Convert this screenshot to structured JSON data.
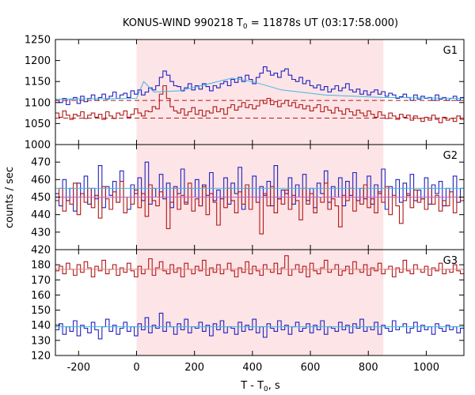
{
  "chart_data": {
    "type": "line",
    "title_main": "KONUS-WIND 990218 T",
    "title_sub": "0",
    "title_rest": " = 11878s UT (03:17:58.000)",
    "xlabel_main": "T - T",
    "xlabel_sub": "0",
    "xlabel_rest": ", s",
    "ylabel": "counts / sec",
    "xlim": [
      -280,
      1130
    ],
    "xticks": [
      -200,
      0,
      200,
      400,
      600,
      800,
      1000
    ],
    "xticklabels": [
      "-200",
      "0",
      "200",
      "400",
      "600",
      "800",
      "1000"
    ],
    "shaded_interval": [
      0,
      852
    ],
    "panels": [
      {
        "name": "G1",
        "ylim": [
          1000,
          1250
        ],
        "yticks": [
          1000,
          1050,
          1100,
          1150,
          1200,
          1250
        ],
        "yticklabels": [
          "1000",
          "1050",
          "1100",
          "1150",
          "1200",
          "1250"
        ],
        "series": [
          {
            "color": "#2020c0",
            "values": [
              1105,
              1100,
              1110,
              1095,
              1108,
              1112,
              1098,
              1115,
              1102,
              1110,
              1118,
              1105,
              1112,
              1120,
              1108,
              1115,
              1125,
              1110,
              1118,
              1122,
              1112,
              1128,
              1120,
              1130,
              1118,
              1125,
              1135,
              1130,
              1140,
              1160,
              1175,
              1165,
              1150,
              1140,
              1138,
              1128,
              1135,
              1145,
              1130,
              1140,
              1132,
              1145,
              1138,
              1128,
              1140,
              1135,
              1145,
              1150,
              1140,
              1155,
              1148,
              1160,
              1150,
              1165,
              1155,
              1145,
              1160,
              1170,
              1185,
              1175,
              1165,
              1170,
              1160,
              1175,
              1180,
              1165,
              1155,
              1150,
              1160,
              1145,
              1152,
              1140,
              1135,
              1142,
              1130,
              1138,
              1125,
              1132,
              1140,
              1128,
              1135,
              1145,
              1130,
              1125,
              1132,
              1120,
              1128,
              1118,
              1125,
              1130,
              1120,
              1126,
              1115,
              1122,
              1118,
              1110,
              1114,
              1120,
              1112,
              1105,
              1118,
              1108,
              1115,
              1110,
              1112,
              1105,
              1118,
              1108,
              1112,
              1105,
              1110,
              1115,
              1105,
              1112
            ]
          },
          {
            "color": "#b01818",
            "values": [
              1075,
              1065,
              1080,
              1070,
              1060,
              1072,
              1068,
              1078,
              1062,
              1070,
              1075,
              1065,
              1072,
              1060,
              1078,
              1068,
              1062,
              1075,
              1070,
              1080,
              1065,
              1072,
              1085,
              1075,
              1068,
              1080,
              1078,
              1090,
              1085,
              1120,
              1140,
              1110,
              1090,
              1080,
              1075,
              1085,
              1070,
              1078,
              1088,
              1072,
              1082,
              1068,
              1080,
              1075,
              1090,
              1078,
              1085,
              1072,
              1088,
              1095,
              1082,
              1090,
              1100,
              1088,
              1095,
              1085,
              1092,
              1105,
              1098,
              1110,
              1095,
              1102,
              1090,
              1098,
              1105,
              1092,
              1100,
              1088,
              1095,
              1085,
              1092,
              1080,
              1088,
              1095,
              1078,
              1090,
              1082,
              1075,
              1088,
              1080,
              1072,
              1085,
              1078,
              1070,
              1082,
              1075,
              1068,
              1080,
              1072,
              1065,
              1078,
              1070,
              1062,
              1075,
              1068,
              1060,
              1072,
              1065,
              1070,
              1058,
              1068,
              1062,
              1055,
              1065,
              1058,
              1070,
              1060,
              1052,
              1065,
              1058,
              1062,
              1055,
              1068,
              1060
            ]
          }
        ],
        "fits": [
          {
            "color": "#40b8e0",
            "style": "solid",
            "points": [
              [
                -280,
                1108
              ],
              [
                0,
                1110
              ],
              [
                25,
                1150
              ],
              [
                60,
                1125
              ],
              [
                150,
                1128
              ],
              [
                330,
                1158
              ],
              [
                400,
                1150
              ],
              [
                500,
                1130
              ],
              [
                650,
                1118
              ],
              [
                850,
                1112
              ],
              [
                1130,
                1110
              ]
            ]
          },
          {
            "color": "#b01818",
            "style": "dashed",
            "points": [
              [
                -280,
                1063
              ],
              [
                1130,
                1063
              ]
            ]
          },
          {
            "color": "#b01818",
            "style": "dashed",
            "points": [
              [
                -280,
                1105
              ],
              [
                1130,
                1105
              ]
            ]
          }
        ]
      },
      {
        "name": "G2",
        "ylim": [
          420,
          480
        ],
        "yticks": [
          420,
          430,
          440,
          450,
          460,
          470
        ],
        "yticklabels": [
          "420",
          "430",
          "440",
          "450",
          "460",
          "470"
        ],
        "series": [
          {
            "color": "#2020c0",
            "values": [
              452,
              445,
              460,
              448,
              455,
              442,
              458,
              450,
              462,
              446,
              455,
              449,
              468,
              444,
              456,
              451,
              459,
              447,
              465,
              450,
              443,
              457,
              452,
              461,
              448,
              470,
              446,
              455,
              450,
              463,
              449,
              458,
              444,
              456,
              452,
              466,
              447,
              455,
              450,
              460,
              445,
              457,
              451,
              464,
              448,
              454,
              449,
              461,
              446,
              458,
              452,
              467,
              443,
              455,
              450,
              462,
              447,
              456,
              451,
              459,
              445,
              468,
              449,
              454,
              452,
              461,
              446,
              457,
              450,
              463,
              448,
              455,
              444,
              458,
              452,
              465,
              447,
              456,
              450,
              461,
              445,
              459,
              451,
              464,
              448,
              455,
              449,
              462,
              446,
              457,
              452,
              466,
              443,
              456,
              450,
              460,
              447,
              458,
              451,
              463,
              448,
              454,
              449,
              461,
              446,
              457,
              452,
              459,
              445,
              455,
              450,
              462,
              447,
              455
            ]
          },
          {
            "color": "#b01818",
            "values": [
              448,
              455,
              442,
              450,
              446,
              458,
              440,
              452,
              447,
              455,
              444,
              451,
              438,
              456,
              449,
              443,
              453,
              447,
              459,
              441,
              450,
              446,
              454,
              444,
              452,
              439,
              457,
              448,
              445,
              453,
              450,
              432,
              447,
              455,
              443,
              451,
              446,
              458,
              442,
              449,
              445,
              456,
              440,
              452,
              447,
              434,
              450,
              444,
              455,
              448,
              441,
              453,
              446,
              457,
              443,
              450,
              447,
              429,
              452,
              445,
              456,
              441,
              449,
              446,
              454,
              443,
              451,
              448,
              437,
              455,
              446,
              452,
              441,
              450,
              447,
              458,
              443,
              449,
              445,
              433,
              451,
              448,
              455,
              442,
              450,
              446,
              457,
              444,
              449,
              441,
              453,
              447,
              456,
              440,
              451,
              445,
              435,
              448,
              452,
              444,
              454,
              447,
              449,
              443,
              455,
              446,
              451,
              442,
              448,
              445,
              453,
              441,
              450,
              448
            ]
          }
        ],
        "fits": [
          {
            "color": "#40b8e0",
            "style": "solid",
            "points": [
              [
                -280,
                455
              ],
              [
                1130,
                455
              ]
            ]
          },
          {
            "color": "#c060c0",
            "style": "solid",
            "points": [
              [
                -280,
                450
              ],
              [
                1130,
                450
              ]
            ]
          }
        ]
      },
      {
        "name": "G3",
        "ylim": [
          120,
          190
        ],
        "yticks": [
          120,
          130,
          140,
          150,
          160,
          170,
          180
        ],
        "yticklabels": [
          "120",
          "130",
          "140",
          "150",
          "160",
          "170",
          "180"
        ],
        "series": [
          {
            "color": "#b01818",
            "values": [
              176,
              179,
              174,
              181,
              177,
              173,
              180,
              175,
              182,
              178,
              172,
              179,
              176,
              183,
              174,
              177,
              180,
              173,
              178,
              175,
              181,
              176,
              172,
              179,
              174,
              177,
              184,
              173,
              178,
              182,
              176,
              174,
              180,
              175,
              178,
              172,
              181,
              177,
              174,
              179,
              176,
              183,
              173,
              178,
              175,
              180,
              174,
              177,
              181,
              176,
              172,
              178,
              175,
              182,
              174,
              179,
              176,
              173,
              180,
              177,
              175,
              181,
              174,
              178,
              186,
              173,
              177,
              180,
              175,
              179,
              172,
              181,
              176,
              174,
              178,
              183,
              175,
              177,
              180,
              173,
              176,
              179,
              174,
              182,
              177,
              175,
              180,
              173,
              178,
              176,
              181,
              174,
              177,
              179,
              172,
              178,
              175,
              183,
              176,
              174,
              180,
              177,
              175,
              179,
              173,
              178,
              176,
              181,
              174,
              177,
              175,
              180,
              176,
              174
            ]
          },
          {
            "color": "#2020c0",
            "values": [
              137,
              141,
              134,
              139,
              136,
              143,
              133,
              140,
              138,
              135,
              142,
              137,
              131,
              139,
              144,
              136,
              140,
              134,
              138,
              142,
              136,
              139,
              133,
              141,
              137,
              145,
              135,
              140,
              138,
              148,
              136,
              142,
              139,
              134,
              141,
              137,
              144,
              135,
              139,
              138,
              142,
              136,
              140,
              133,
              141,
              137,
              143,
              135,
              139,
              138,
              134,
              142,
              136,
              140,
              137,
              144,
              135,
              139,
              132,
              141,
              138,
              136,
              143,
              137,
              140,
              134,
              139,
              142,
              136,
              138,
              141,
              135,
              140,
              137,
              143,
              134,
              139,
              138,
              136,
              142,
              137,
              140,
              135,
              141,
              138,
              144,
              136,
              139,
              137,
              142,
              134,
              140,
              138,
              136,
              143,
              137,
              139,
              141,
              135,
              138,
              142,
              136,
              140,
              137,
              139,
              134,
              141,
              138,
              136,
              140,
              137,
              139,
              135,
              138
            ]
          }
        ],
        "fits": [
          {
            "color": "#e08080",
            "style": "solid",
            "points": [
              [
                -280,
                177
              ],
              [
                1130,
                177
              ]
            ]
          },
          {
            "color": "#40b8e0",
            "style": "solid",
            "points": [
              [
                -280,
                139
              ],
              [
                1130,
                139
              ]
            ]
          }
        ]
      }
    ]
  }
}
